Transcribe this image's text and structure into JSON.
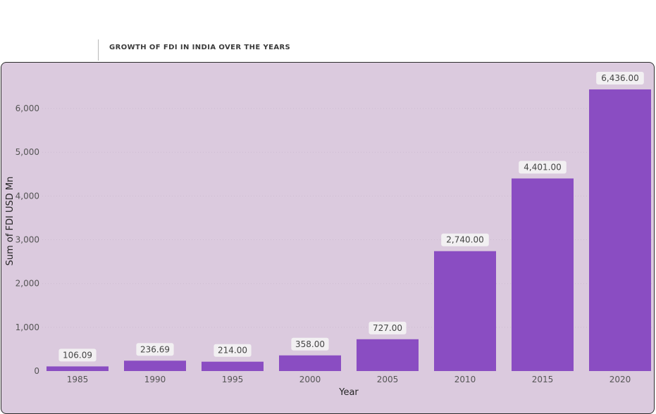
{
  "header": {
    "title": "GROWTH OF FDI IN INDIA OVER THE YEARS"
  },
  "colors": {
    "panel_background": "#dbcade",
    "bar": "#8a4dc2",
    "data_label_background": "#f2f0f2"
  },
  "chart_data": {
    "type": "bar",
    "title": "GROWTH OF FDI IN INDIA OVER THE YEARS",
    "xlabel": "Year",
    "ylabel": "Sum of FDI USD Mn",
    "categories": [
      "1985",
      "1990",
      "1995",
      "2000",
      "2005",
      "2010",
      "2015",
      "2020"
    ],
    "values": [
      106.09,
      236.69,
      214.0,
      358.0,
      727.0,
      2740.0,
      4401.0,
      6436.0
    ],
    "data_labels": [
      "106.09",
      "236.69",
      "214.00",
      "358.00",
      "727.00",
      "2,740.00",
      "4,401.00",
      "6,436.00"
    ],
    "yticks": [
      0,
      1000,
      2000,
      3000,
      4000,
      5000,
      6000
    ],
    "ytick_labels": [
      "0",
      "1,000",
      "2,000",
      "3,000",
      "4,000",
      "5,000",
      "6,000"
    ],
    "ylim": [
      0,
      6436
    ],
    "grid": true
  }
}
